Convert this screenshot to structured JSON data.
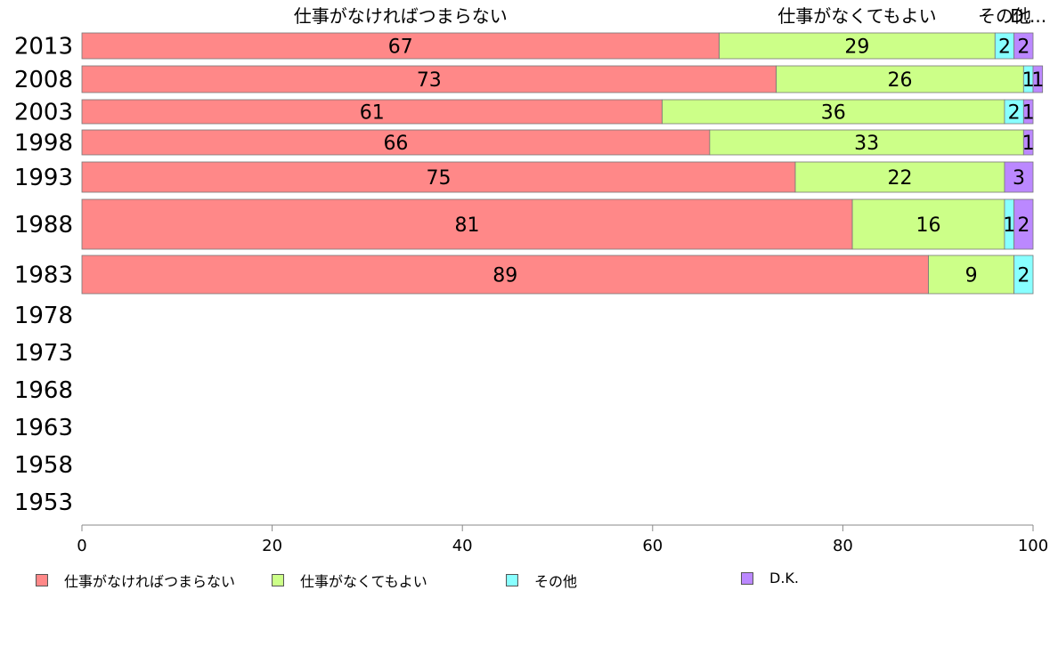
{
  "chart_data": {
    "type": "bar",
    "orientation": "horizontal",
    "stacked": true,
    "categories": [
      "2013",
      "2008",
      "2003",
      "1998",
      "1993",
      "1988",
      "1983",
      "1978",
      "1973",
      "1968",
      "1963",
      "1958",
      "1953"
    ],
    "series": [
      {
        "name": "仕事がなければつまらない",
        "color": "#ff8888",
        "values": [
          67,
          73,
          61,
          66,
          75,
          81,
          89,
          null,
          null,
          null,
          null,
          null,
          null
        ]
      },
      {
        "name": "仕事がなくてもよい",
        "color": "#ccff88",
        "values": [
          29,
          26,
          36,
          33,
          22,
          16,
          9,
          null,
          null,
          null,
          null,
          null,
          null
        ]
      },
      {
        "name": "その他",
        "color": "#88ffff",
        "values": [
          2,
          1,
          2,
          null,
          null,
          1,
          2,
          null,
          null,
          null,
          null,
          null,
          null
        ]
      },
      {
        "name": "D.K.",
        "color": "#bb88ff",
        "values": [
          2,
          1,
          1,
          1,
          3,
          2,
          null,
          null,
          null,
          null,
          null,
          null,
          null
        ]
      }
    ],
    "top_labels": [
      "仕事がなければつまらない",
      "仕事がなくてもよい",
      "その他",
      "D...."
    ],
    "xlim": [
      0,
      100
    ],
    "xticks": [
      "0",
      "20",
      "40",
      "60",
      "80",
      "100"
    ],
    "grid": false,
    "legend_position": "bottom"
  }
}
